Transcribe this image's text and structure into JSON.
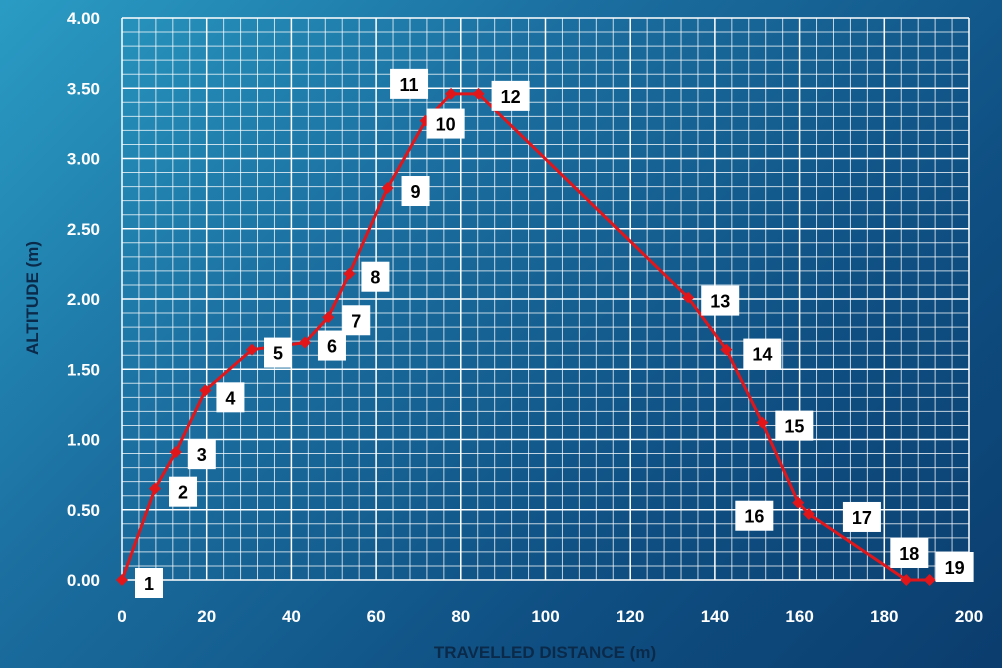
{
  "chart_data": {
    "type": "line",
    "xlabel": "TRAVELLED DISTANCE (m)",
    "ylabel": "ALTITUDE (m)",
    "xlim": [
      0,
      200
    ],
    "ylim": [
      0,
      4
    ],
    "x_ticks": [
      "0",
      "20",
      "40",
      "60",
      "80",
      "100",
      "120",
      "140",
      "160",
      "180",
      "200"
    ],
    "y_ticks": [
      "0.00",
      "0.50",
      "1.00",
      "1.50",
      "2.00",
      "2.50",
      "3.00",
      "3.50",
      "4.00"
    ],
    "grid": true,
    "line_color": "#e0161b",
    "series": [
      {
        "points": [
          {
            "label": "1",
            "x": 0,
            "y": 0.0
          },
          {
            "label": "2",
            "x": 7.8,
            "y": 0.65
          },
          {
            "label": "3",
            "x": 12.7,
            "y": 0.91
          },
          {
            "label": "4",
            "x": 19.7,
            "y": 1.35
          },
          {
            "label": "5",
            "x": 30.7,
            "y": 1.64
          },
          {
            "label": "6",
            "x": 43.2,
            "y": 1.69
          },
          {
            "label": "7",
            "x": 48.7,
            "y": 1.87
          },
          {
            "label": "8",
            "x": 53.7,
            "y": 2.18
          },
          {
            "label": "9",
            "x": 62.7,
            "y": 2.79
          },
          {
            "label": "10",
            "x": 71.7,
            "y": 3.27
          },
          {
            "label": "11",
            "x": 77.7,
            "y": 3.46
          },
          {
            "label": "12",
            "x": 84.2,
            "y": 3.46
          },
          {
            "label": "13",
            "x": 133.7,
            "y": 2.01
          },
          {
            "label": "14",
            "x": 142.7,
            "y": 1.64
          },
          {
            "label": "15",
            "x": 151.2,
            "y": 1.12
          },
          {
            "label": "16",
            "x": 159.7,
            "y": 0.55
          },
          {
            "label": "17",
            "x": 162.2,
            "y": 0.47
          },
          {
            "label": "18",
            "x": 185.2,
            "y": 0.0
          },
          {
            "label": "19",
            "x": 190.7,
            "y": 0.0
          }
        ]
      }
    ]
  }
}
